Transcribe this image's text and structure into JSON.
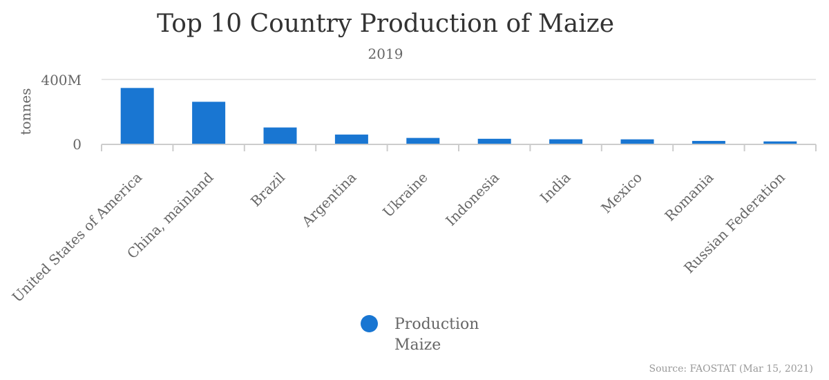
{
  "chart_data": {
    "type": "bar",
    "title": "Top 10 Country Production of Maize",
    "subtitle": "2019",
    "ylabel": "tonnes",
    "xlabel": "",
    "ylim": [
      0,
      400000000
    ],
    "yticks": [
      0,
      400000000
    ],
    "ytick_labels": [
      "0",
      "400M"
    ],
    "grid": true,
    "categories": [
      "United States of America",
      "China, mainland",
      "Brazil",
      "Argentina",
      "Ukraine",
      "Indonesia",
      "India",
      "Mexico",
      "Romania",
      "Russian Federation"
    ],
    "series": [
      {
        "name": "Production Maize",
        "color": "#1976d2",
        "values": [
          347000000,
          261000000,
          101000000,
          57000000,
          36000000,
          30700000,
          27700000,
          27200000,
          17400000,
          14300000
        ]
      }
    ],
    "legend_position": "bottom",
    "source": "Source: FAOSTAT (Mar 15, 2021)"
  }
}
